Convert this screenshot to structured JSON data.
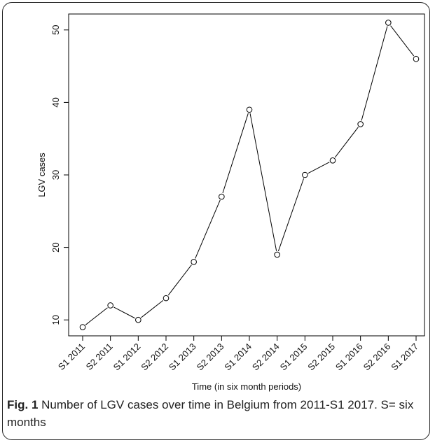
{
  "chart_data": {
    "type": "line",
    "categories": [
      "S1 2011",
      "S2 2011",
      "S1 2012",
      "S2 2012",
      "S1 2013",
      "S2 2013",
      "S1 2014",
      "S2 2014",
      "S1 2015",
      "S2 2015",
      "S1 2016",
      "S2 2016",
      "S1 2017"
    ],
    "values": [
      9,
      12,
      10,
      13,
      18,
      27,
      39,
      19,
      30,
      32,
      37,
      51,
      46
    ],
    "xlabel": "Time (in six month periods)",
    "ylabel": "LGV cases",
    "yticks": [
      10,
      20,
      30,
      40,
      50
    ],
    "ylim": [
      7.8,
      52.2
    ],
    "marker": "open-circle",
    "line_color": "#000000",
    "grid": false,
    "legend": "none"
  },
  "caption": {
    "label": "Fig. 1",
    "text": "Number of LGV cases over time in Belgium from 2011-S1 2017. S= six months"
  }
}
